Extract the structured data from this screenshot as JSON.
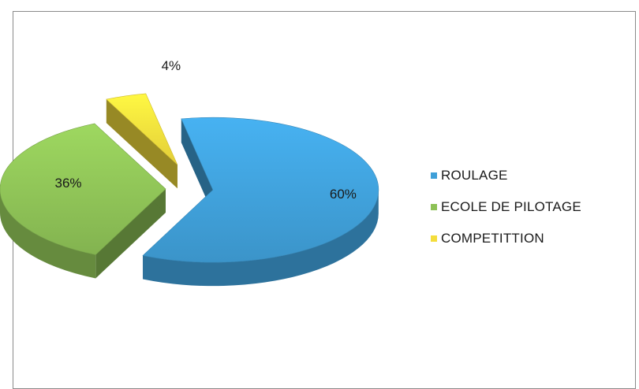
{
  "chart_data": {
    "type": "pie",
    "categories": [
      "ROULAGE",
      "ECOLE DE PILOTAGE",
      "COMPETITTION"
    ],
    "values": [
      60,
      36,
      4
    ],
    "data_labels": [
      "60%",
      "36%",
      "4%"
    ],
    "colors": [
      "#3f9fd8",
      "#8dc156",
      "#f4dd3c"
    ],
    "legend_position": "right",
    "exploded": true,
    "style": "3d"
  }
}
